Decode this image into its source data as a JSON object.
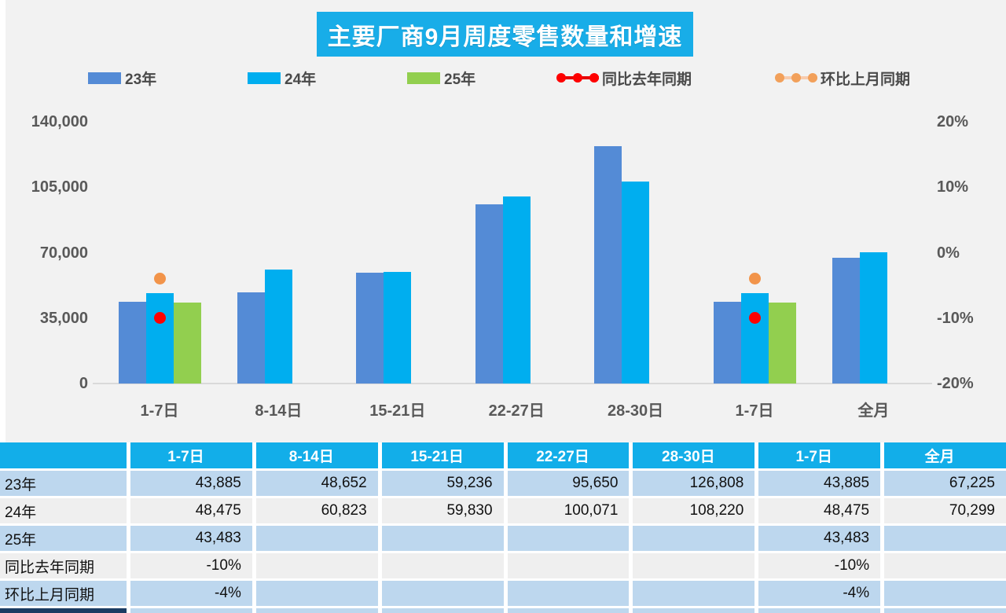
{
  "title": "主要厂商9月周度零售数量和增速",
  "legend": {
    "items": [
      {
        "label": "23年",
        "type": "swatch",
        "color": "#548BD6"
      },
      {
        "label": "24年",
        "type": "swatch",
        "color": "#00AEEF"
      },
      {
        "label": "25年",
        "type": "swatch",
        "color": "#92CF4F"
      },
      {
        "label": "同比去年同期",
        "type": "dots",
        "dot_color": "#FE0000",
        "line_color": "#E60000"
      },
      {
        "label": "环比上月同期",
        "type": "dots",
        "dot_color": "#F2A05A",
        "line_color": "#F8CBAD"
      }
    ]
  },
  "chart_data": {
    "type": "bar",
    "title": "主要厂商9月周度零售数量和增速",
    "categories": [
      "1-7日",
      "8-14日",
      "15-21日",
      "22-27日",
      "28-30日",
      "1-7日",
      "全月"
    ],
    "series": [
      {
        "name": "23年",
        "kind": "bar",
        "color": "#548BD6",
        "values": [
          43885,
          48652,
          59236,
          95650,
          126808,
          43885,
          67225
        ]
      },
      {
        "name": "24年",
        "kind": "bar",
        "color": "#00AEEF",
        "values": [
          48475,
          60823,
          59830,
          100071,
          108220,
          48475,
          70299
        ]
      },
      {
        "name": "25年",
        "kind": "bar",
        "color": "#92CF4F",
        "values": [
          43483,
          null,
          null,
          null,
          null,
          43483,
          null
        ]
      },
      {
        "name": "同比去年同期",
        "kind": "point",
        "color": "#FE0000",
        "values_pct": [
          -10,
          null,
          null,
          null,
          null,
          -10,
          null
        ]
      },
      {
        "name": "环比上月同期",
        "kind": "point",
        "color": "#F2944A",
        "values_pct": [
          -4,
          null,
          null,
          null,
          null,
          -4,
          null
        ]
      }
    ],
    "y_left": {
      "min": 0,
      "max": 140000,
      "ticks": [
        {
          "label": "140,000",
          "value": 140000
        },
        {
          "label": "105,000",
          "value": 105000
        },
        {
          "label": "70,000",
          "value": 70000
        },
        {
          "label": "35,000",
          "value": 35000
        },
        {
          "label": "0",
          "value": 0
        }
      ]
    },
    "y_right": {
      "min": -20,
      "max": 20,
      "ticks": [
        {
          "label": "20%",
          "value": 20
        },
        {
          "label": "10%",
          "value": 10
        },
        {
          "label": "0%",
          "value": 0
        },
        {
          "label": "-10%",
          "value": -10
        },
        {
          "label": "-20%",
          "value": -20
        }
      ]
    },
    "grid": false,
    "legend_position": "top"
  },
  "table": {
    "header": [
      "",
      "1-7日",
      "8-14日",
      "15-21日",
      "22-27日",
      "28-30日",
      "1-7日",
      "全月"
    ],
    "rows": [
      {
        "label": "23年",
        "values": [
          "43,885",
          "48,652",
          "59,236",
          "95,650",
          "126,808",
          "43,885",
          "67,225"
        ]
      },
      {
        "label": "24年",
        "values": [
          "48,475",
          "60,823",
          "59,830",
          "100,071",
          "108,220",
          "48,475",
          "70,299"
        ]
      },
      {
        "label": "25年",
        "values": [
          "43,483",
          "",
          "",
          "",
          "",
          "43,483",
          ""
        ]
      },
      {
        "label": "同比去年同期",
        "values": [
          "-10%",
          "",
          "",
          "",
          "",
          "-10%",
          ""
        ]
      },
      {
        "label": "环比上月同期",
        "values": [
          "-4%",
          "",
          "",
          "",
          "",
          "-4%",
          ""
        ]
      }
    ],
    "row_colors": {
      "odd": "#BDD7EE",
      "even": "#EFEFEF",
      "header": "#12AEE9",
      "partial_first": "#1B3C63"
    }
  }
}
